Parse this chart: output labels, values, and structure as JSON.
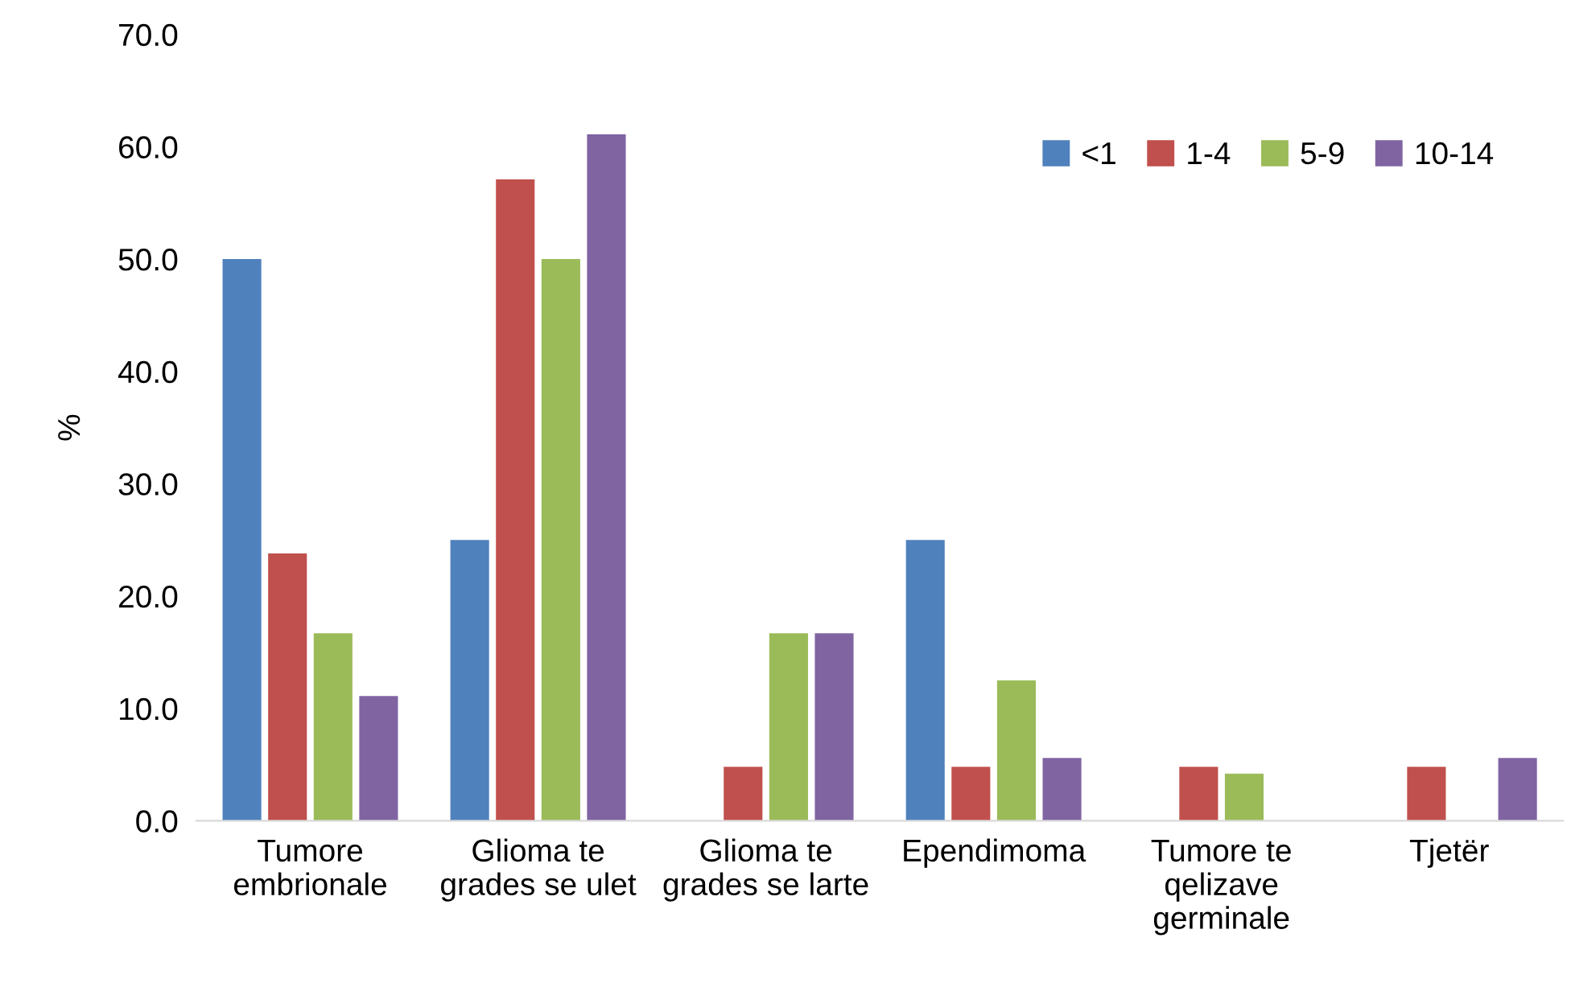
{
  "chart_data": {
    "type": "bar",
    "ylabel": "%",
    "categories": [
      "Tumore\nembrionale",
      "Glioma te\ngrades se ulet",
      "Glioma te\ngrades se larte",
      "Ependimoma",
      "Tumore te\nqelizave\ngerminale",
      "Tjetër"
    ],
    "series": [
      {
        "name": "<1",
        "color": "#4f81bd",
        "values": [
          50.0,
          25.0,
          0,
          25.0,
          0,
          0
        ]
      },
      {
        "name": "1-4",
        "color": "#c0504d",
        "values": [
          23.8,
          57.1,
          4.8,
          4.8,
          4.8,
          4.8
        ]
      },
      {
        "name": "5-9",
        "color": "#9bbb59",
        "values": [
          16.7,
          50.0,
          16.7,
          12.5,
          4.2,
          0
        ]
      },
      {
        "name": "10-14",
        "color": "#8064a2",
        "values": [
          11.1,
          61.1,
          16.7,
          5.6,
          0,
          5.6
        ]
      }
    ],
    "ylim": [
      0,
      70
    ],
    "yticks": [
      {
        "value": 0,
        "label": "0.0"
      },
      {
        "value": 10,
        "label": "10.0"
      },
      {
        "value": 20,
        "label": "20.0"
      },
      {
        "value": 30,
        "label": "30.0"
      },
      {
        "value": 40,
        "label": "40.0"
      },
      {
        "value": 50,
        "label": "50.0"
      },
      {
        "value": 60,
        "label": "60.0"
      },
      {
        "value": 70,
        "label": "70.0"
      }
    ],
    "grid": false,
    "legend": "top right"
  }
}
